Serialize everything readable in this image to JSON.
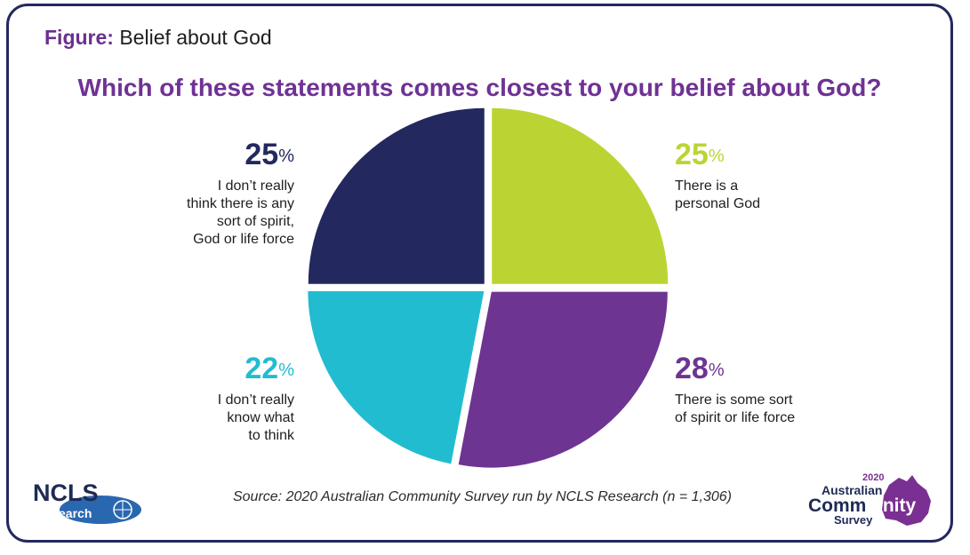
{
  "figure": {
    "label": "Figure:",
    "title": "Belief about God"
  },
  "question": "Which of these statements comes closest to your belief about God?",
  "chart_data": {
    "type": "pie",
    "slices": [
      {
        "label": "There is a personal God",
        "value": 25,
        "pct_text": "25",
        "color": "#bcd433"
      },
      {
        "label": "There is some sort of spirit or life force",
        "value": 28,
        "pct_text": "28",
        "color": "#6e3492"
      },
      {
        "label": "I don’t really know what to think",
        "value": 22,
        "pct_text": "22",
        "color": "#22bcd1"
      },
      {
        "label": "I don’t really think there is any sort of spirit, God or life force",
        "value": 25,
        "pct_text": "25",
        "color": "#23285f"
      }
    ],
    "percent_symbol": "%"
  },
  "labels": {
    "s0": [
      "There is a",
      "personal God"
    ],
    "s1": [
      "There is some sort",
      "of spirit or life force"
    ],
    "s2": [
      "I don’t really",
      "know what",
      "to think"
    ],
    "s3": [
      "I don’t really",
      "think there is any",
      "sort of spirit,",
      "God or life force"
    ]
  },
  "source": "Source: 2020 Australian Community Survey run by NCLS Research (n = 1,306)",
  "logos": {
    "ncls": {
      "main": "NCLS",
      "sub": "research"
    },
    "acs": {
      "year": "2020",
      "line1": "Australian",
      "line2a": "Comm",
      "line2b": "unity",
      "line3": "Survey"
    }
  }
}
